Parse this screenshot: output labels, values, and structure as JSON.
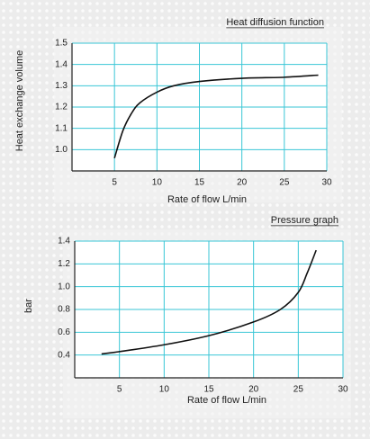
{
  "chart_data": [
    {
      "type": "line",
      "title": "Heat diffusion function",
      "y_label": "Heat exchange volume",
      "x_label": "Rate of flow L/min",
      "xlim": [
        0,
        30
      ],
      "xticks": [
        5,
        10,
        15,
        20,
        25,
        30
      ],
      "ylim": [
        0.9,
        1.5
      ],
      "yticks": [
        {
          "value": 1.0,
          "label": "1.0"
        },
        1.1,
        1.2,
        1.3,
        1.4,
        1.5
      ],
      "grid": true,
      "grid_color": "#39c6d6",
      "series": [
        {
          "color": "#111111",
          "x": [
            5,
            6,
            7,
            8,
            10,
            12,
            15,
            20,
            25,
            29
          ],
          "values": [
            0.96,
            1.09,
            1.17,
            1.22,
            1.27,
            1.3,
            1.32,
            1.335,
            1.34,
            1.35
          ]
        }
      ]
    },
    {
      "type": "line",
      "title": "Pressure graph",
      "y_label": "bar",
      "x_label": "Rate of flow L/min",
      "xlim": [
        0,
        30
      ],
      "xticks": [
        5,
        10,
        15,
        20,
        25,
        30
      ],
      "ylim": [
        0.2,
        1.4
      ],
      "yticks": [
        0.4,
        0.6,
        0.8,
        {
          "value": 1.0,
          "label": "1.0"
        },
        1.2,
        1.4
      ],
      "grid": true,
      "grid_color": "#39c6d6",
      "series": [
        {
          "color": "#111111",
          "x": [
            3,
            5,
            10,
            15,
            20,
            23,
            25,
            26,
            27
          ],
          "values": [
            0.41,
            0.43,
            0.49,
            0.57,
            0.69,
            0.8,
            0.95,
            1.12,
            1.32
          ]
        }
      ]
    }
  ]
}
